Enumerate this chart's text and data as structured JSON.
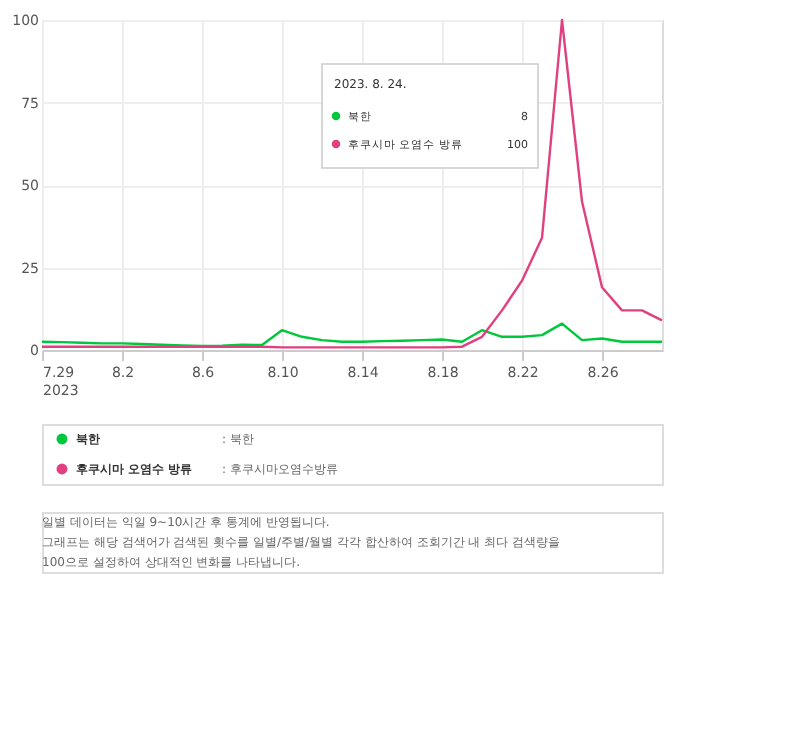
{
  "chart_data": {
    "type": "line",
    "x": [
      "2023-07-29",
      "2023-07-30",
      "2023-07-31",
      "2023-08-01",
      "2023-08-02",
      "2023-08-03",
      "2023-08-04",
      "2023-08-05",
      "2023-08-06",
      "2023-08-07",
      "2023-08-08",
      "2023-08-09",
      "2023-08-10",
      "2023-08-11",
      "2023-08-12",
      "2023-08-13",
      "2023-08-14",
      "2023-08-15",
      "2023-08-16",
      "2023-08-17",
      "2023-08-18",
      "2023-08-19",
      "2023-08-20",
      "2023-08-21",
      "2023-08-22",
      "2023-08-23",
      "2023-08-24",
      "2023-08-25",
      "2023-08-26",
      "2023-08-27",
      "2023-08-28",
      "2023-08-29"
    ],
    "series": [
      {
        "name": "북한",
        "color": "#00c73c",
        "values": [
          2.5,
          2.4,
          2.2,
          2,
          2,
          1.8,
          1.6,
          1.4,
          1.2,
          1.3,
          1.6,
          1.5,
          6,
          4,
          3,
          2.5,
          2.5,
          2.7,
          2.8,
          3,
          3.2,
          2.5,
          6,
          4,
          4,
          4.5,
          8,
          3,
          3.5,
          2.5,
          2.5,
          2.5
        ]
      },
      {
        "name": "후쿠시마 오염수 방류",
        "color": "#e0407f",
        "values": [
          1,
          1,
          1,
          1,
          1,
          1,
          1,
          1,
          1,
          1,
          1,
          1,
          0.8,
          0.8,
          0.8,
          0.8,
          0.8,
          0.8,
          0.8,
          0.8,
          0.8,
          1,
          4,
          12,
          21,
          34,
          100,
          45,
          19,
          12,
          12,
          9
        ]
      }
    ],
    "ylim": [
      0,
      100
    ],
    "yticks": [
      0,
      25,
      50,
      75,
      100
    ],
    "xlim": [
      "2023-07-29",
      "2023-08-29"
    ],
    "xticks": [
      {
        "value": "2023-07-29",
        "label": "7.29\n2023"
      },
      {
        "value": "2023-08-02",
        "label": "8.2"
      },
      {
        "value": "2023-08-06",
        "label": "8.6"
      },
      {
        "value": "2023-08-10",
        "label": "8.10"
      },
      {
        "value": "2023-08-14",
        "label": "8.14"
      },
      {
        "value": "2023-08-18",
        "label": "8.18"
      },
      {
        "value": "2023-08-22",
        "label": "8.22"
      },
      {
        "value": "2023-08-26",
        "label": "8.26"
      }
    ],
    "grid": true,
    "legend": "bottom",
    "line_style": "solid",
    "annotations": [
      "2023. 8. 24.",
      "8",
      "100",
      ": 북한",
      ": 후쿠시마오염수방류",
      "일별 데이터는 익일 9~10시간 후 통계에 반영됩니다.",
      "그래프는 해당 검색어가 검색된 횟수를 일별/주별/월별 각각 합산하여 조회기간 내 최다 검색량을 100으로 설정하여 상대적인 변화를 나타냅니다."
    ]
  }
}
